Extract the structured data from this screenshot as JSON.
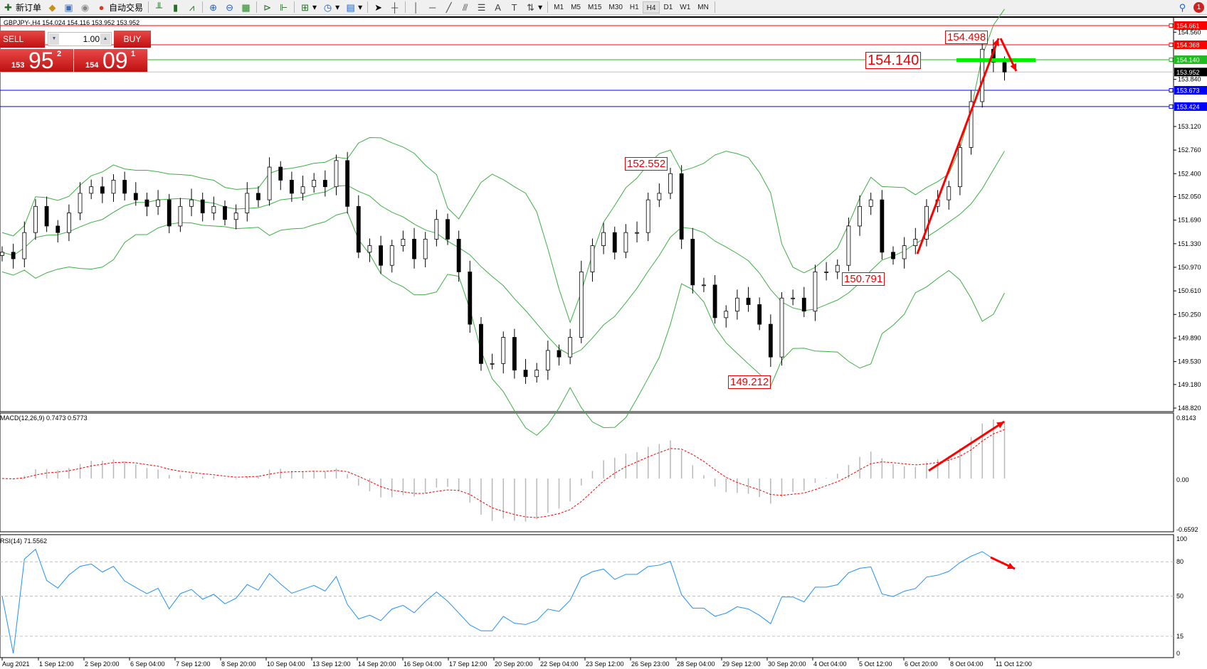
{
  "toolbar": {
    "new_order": "新订单",
    "auto_trading": "自动交易",
    "icons": [
      "new-order-icon",
      "market-watch-icon",
      "data-window-icon",
      "signals-icon",
      "auto-trading-icon",
      "bar-chart-icon",
      "candlestick-icon",
      "line-chart-icon",
      "zoom-in-icon",
      "zoom-out-icon",
      "tile-windows-icon",
      "autoscroll-icon",
      "chart-shift-icon",
      "indicators-icon",
      "periods-icon",
      "templates-icon",
      "cursor-icon",
      "crosshair-icon",
      "vertical-line-icon",
      "horizontal-line-icon",
      "trendline-icon",
      "fibonacci-icon",
      "text-icon",
      "text-label-icon",
      "arrows-icon"
    ],
    "timeframes": [
      "M1",
      "M5",
      "M15",
      "M30",
      "H1",
      "H4",
      "D1",
      "W1",
      "MN"
    ],
    "active_timeframe": "H4",
    "notification_count": "1"
  },
  "chart_header": "GBPJPY-,H4  154.024 154.116 153.952 153.952",
  "trade_panel": {
    "sell_label": "SELL",
    "buy_label": "BUY",
    "lot": "1.00",
    "sell_small": "153",
    "sell_big": "95",
    "sell_sup": "2",
    "buy_small": "154",
    "buy_big": "09",
    "buy_sup": "1"
  },
  "chart_data": [
    {
      "type": "candlestick",
      "symbol": "GBPJPY-",
      "timeframe": "H4",
      "ylim": [
        148.82,
        154.661
      ],
      "y_ticks": [
        "154.560",
        "153.840",
        "153.120",
        "152.760",
        "152.400",
        "152.050",
        "151.690",
        "151.330",
        "150.970",
        "150.610",
        "150.250",
        "149.890",
        "149.530",
        "149.180",
        "148.820"
      ],
      "closes": [
        151.2,
        151.1,
        151.5,
        151.9,
        151.6,
        151.5,
        151.8,
        152.1,
        152.2,
        152.1,
        152.3,
        152.1,
        152.0,
        151.9,
        152.0,
        151.6,
        151.9,
        152.0,
        151.8,
        151.9,
        151.7,
        151.8,
        152.1,
        152.0,
        152.5,
        152.3,
        152.1,
        152.2,
        152.3,
        152.2,
        152.6,
        151.9,
        151.2,
        151.3,
        151.0,
        151.3,
        151.4,
        151.1,
        151.4,
        151.7,
        151.4,
        150.9,
        150.1,
        149.5,
        149.5,
        149.9,
        149.4,
        149.3,
        149.4,
        149.7,
        149.6,
        149.9,
        150.9,
        151.3,
        151.5,
        151.2,
        151.5,
        151.5,
        152.0,
        152.1,
        152.4,
        151.4,
        150.7,
        150.7,
        150.2,
        150.3,
        150.5,
        150.4,
        150.1,
        149.6,
        150.5,
        150.5,
        150.3,
        150.9,
        150.9,
        151.0,
        151.6,
        151.9,
        152.0,
        151.2,
        151.1,
        151.3,
        151.4,
        151.9,
        152.0,
        152.2,
        152.8,
        153.5,
        154.3,
        154.1,
        153.952
      ],
      "overlay": "Bollinger Bands",
      "levels": [
        {
          "price": "154.661",
          "color": "#ff0000"
        },
        {
          "price": "154.368",
          "color": "#ff0000"
        },
        {
          "price": "154.140",
          "color": "#22bb22"
        },
        {
          "price": "153.952",
          "color": "#000000",
          "current": true
        },
        {
          "price": "153.673",
          "color": "#0000ff"
        },
        {
          "price": "153.424",
          "color": "#0000ff"
        }
      ],
      "annotations": [
        "154.498",
        "154.140",
        "152.552",
        "150.791",
        "149.212"
      ]
    },
    {
      "type": "histogram+line",
      "title": "MACD(12,26,9) 0.7473 0.5773",
      "y_ticks": [
        "0.8143",
        "0.00",
        "-0.6592"
      ],
      "ylim": [
        -0.6592,
        0.8143
      ]
    },
    {
      "type": "line",
      "title": "RSI(14) 71.5562",
      "y_ticks": [
        "100",
        "80",
        "50",
        "15",
        "0"
      ],
      "ylim": [
        0,
        100
      ],
      "levels": [
        80,
        50,
        15
      ],
      "color": "#1e90ff"
    }
  ],
  "time_axis": [
    "Aug 2021",
    "1 Sep 12:00",
    "2 Sep 20:00",
    "6 Sep 04:00",
    "7 Sep 12:00",
    "8 Sep 20:00",
    "10 Sep 04:00",
    "13 Sep 12:00",
    "14 Sep 20:00",
    "16 Sep 04:00",
    "17 Sep 12:00",
    "20 Sep 20:00",
    "22 Sep 04:00",
    "23 Sep 12:00",
    "26 Sep 23:00",
    "28 Sep 04:00",
    "29 Sep 12:00",
    "30 Sep 20:00",
    "4 Oct 04:00",
    "5 Oct 12:00",
    "6 Oct 20:00",
    "8 Oct 04:00",
    "11 Oct 12:00"
  ]
}
